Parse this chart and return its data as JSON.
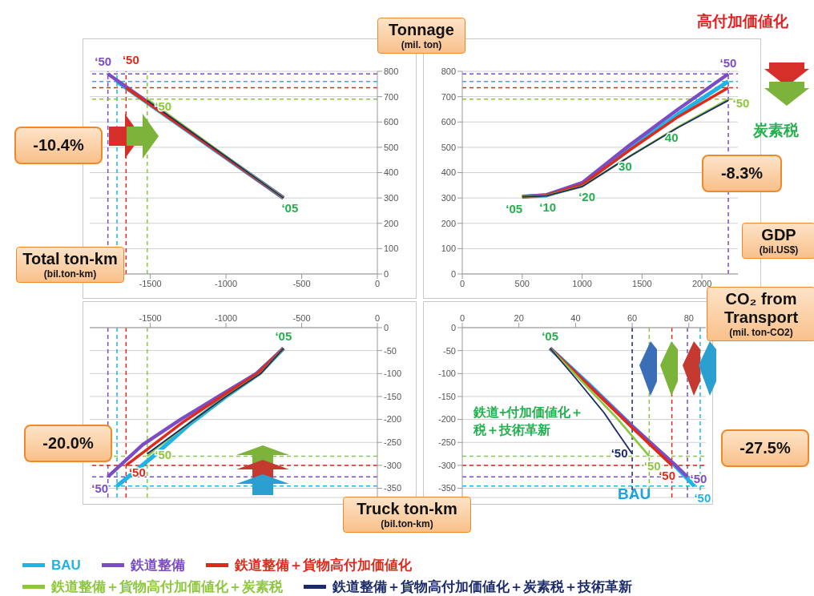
{
  "chart_data": [
    {
      "type": "line",
      "xlabel": "Total ton-km (bil.ton-km)",
      "ylabel": "Tonnage (mil. ton)",
      "xlim": [
        -1900,
        0
      ],
      "xticks": [
        -1500,
        -1000,
        -500,
        0
      ],
      "ylim": [
        0,
        800
      ],
      "yticks": [
        0,
        100,
        200,
        300,
        400,
        500,
        600,
        700,
        800
      ],
      "grid": "y",
      "line_style": "solid",
      "series": [
        {
          "color": "#1fb4e6",
          "x": [
            -620,
            -1170,
            -1720
          ],
          "values": [
            300,
            530,
            760
          ]
        },
        {
          "color": "#7b4cc4",
          "x": [
            -620,
            -1200,
            -1780
          ],
          "values": [
            300,
            545,
            790
          ]
        },
        {
          "color": "#dd2a1b",
          "x": [
            -620,
            -1140,
            -1660
          ],
          "values": [
            300,
            518,
            735
          ]
        },
        {
          "color": "#8dc63f",
          "x": [
            -620,
            -1070,
            -1520
          ],
          "values": [
            300,
            495,
            690
          ]
        },
        {
          "color": "#1b2a6b",
          "x": [
            -620,
            -1070,
            -1520
          ],
          "values": [
            300,
            493,
            685
          ]
        }
      ],
      "ref_lines": [
        {
          "axis": "x",
          "value": -1780,
          "color": "#7b4cc4",
          "line_style": "dashed"
        },
        {
          "axis": "x",
          "value": -1720,
          "color": "#1fb4e6",
          "line_style": "dashed"
        },
        {
          "axis": "x",
          "value": -1660,
          "color": "#dd2a1b",
          "line_style": "dashed"
        },
        {
          "axis": "x",
          "value": -1520,
          "color": "#8dc63f",
          "line_style": "dashed"
        },
        {
          "axis": "y",
          "value": 790,
          "color": "#7b4cc4",
          "line_style": "dashed"
        },
        {
          "axis": "y",
          "value": 760,
          "color": "#1fb4e6",
          "line_style": "dashed"
        },
        {
          "axis": "y",
          "value": 735,
          "color": "#dd2a1b",
          "line_style": "dashed"
        },
        {
          "axis": "y",
          "value": 690,
          "color": "#8dc63f",
          "line_style": "dashed"
        }
      ],
      "annotations": [
        "-10.4%",
        {
          "text": "‘50",
          "x": -1780,
          "y": 790
        },
        {
          "text": "‘50",
          "x": -1660,
          "y": 735
        },
        {
          "text": "‘50",
          "x": -1520,
          "y": 690
        },
        {
          "text": "‘05",
          "x": -620,
          "y": 300
        }
      ]
    },
    {
      "type": "line",
      "xlabel": "GDP (bil.US$)",
      "xlim": [
        0,
        2300
      ],
      "xticks": [
        0,
        500,
        1000,
        1500,
        2000
      ],
      "ylim": [
        0,
        800
      ],
      "yticks": [
        0,
        100,
        200,
        300,
        400,
        500,
        600,
        700,
        800
      ],
      "grid": "y",
      "line_style": "solid",
      "series": [
        {
          "color": "#1fb4e6",
          "x": [
            500,
            700,
            1000,
            1400,
            1800,
            2220
          ],
          "values": [
            305,
            310,
            355,
            495,
            630,
            760
          ]
        },
        {
          "color": "#7b4cc4",
          "x": [
            500,
            700,
            1000,
            1400,
            1800,
            2220
          ],
          "values": [
            305,
            312,
            360,
            510,
            650,
            790
          ]
        },
        {
          "color": "#dd2a1b",
          "x": [
            500,
            700,
            1000,
            1400,
            1800,
            2220
          ],
          "values": [
            305,
            310,
            352,
            490,
            620,
            735
          ]
        },
        {
          "color": "#8dc63f",
          "x": [
            500,
            700,
            1000,
            1400,
            1800,
            2220
          ],
          "values": [
            305,
            308,
            345,
            465,
            580,
            690
          ]
        },
        {
          "color": "#1b2a6b",
          "x": [
            500,
            700,
            1000,
            1400,
            1800,
            2220
          ],
          "values": [
            305,
            308,
            345,
            465,
            578,
            685
          ]
        }
      ],
      "ref_lines": [
        {
          "axis": "x",
          "value": 2220,
          "color": "#7b4cc4",
          "line_style": "dashed"
        },
        {
          "axis": "y",
          "value": 790,
          "color": "#7b4cc4",
          "line_style": "dashed"
        },
        {
          "axis": "y",
          "value": 760,
          "color": "#1fb4e6",
          "line_style": "dashed"
        },
        {
          "axis": "y",
          "value": 735,
          "color": "#dd2a1b",
          "line_style": "dashed"
        },
        {
          "axis": "y",
          "value": 690,
          "color": "#8dc63f",
          "line_style": "dashed"
        }
      ],
      "annotations": [
        "-8.3%",
        "高付加価値化",
        "炭素税",
        {
          "text": "‘05",
          "x": 500,
          "y": 305
        },
        {
          "text": "‘10",
          "x": 700,
          "y": 310
        },
        {
          "text": "‘20",
          "x": 1000,
          "y": 345
        },
        {
          "text": "30",
          "x": 1400,
          "y": 465
        },
        {
          "text": "40",
          "x": 1800,
          "y": 580
        },
        {
          "text": "‘50",
          "x": 2220,
          "y": 790
        },
        {
          "text": "‘50",
          "x": 2220,
          "y": 690
        }
      ]
    },
    {
      "type": "line",
      "ylabel": "Truck ton-km (bil.ton-km)",
      "xlim": [
        -1900,
        0
      ],
      "xticks": [
        -1500,
        -1000,
        -500,
        0
      ],
      "ylim": [
        -370,
        0
      ],
      "yticks": [
        -350,
        -300,
        -250,
        -200,
        -150,
        -100,
        -50,
        0
      ],
      "grid": "y",
      "line_style": "solid",
      "series": [
        {
          "color": "#1fb4e6",
          "x": [
            -620,
            -780,
            -1000,
            -1240,
            -1480,
            -1720
          ],
          "values": [
            -45,
            -100,
            -150,
            -210,
            -280,
            -345
          ]
        },
        {
          "color": "#7b4cc4",
          "x": [
            -620,
            -800,
            -1050,
            -1300,
            -1550,
            -1780
          ],
          "values": [
            -45,
            -100,
            -150,
            -200,
            -255,
            -325
          ]
        },
        {
          "color": "#dd2a1b",
          "x": [
            -620,
            -790,
            -1030,
            -1280,
            -1520,
            -1660
          ],
          "values": [
            -45,
            -100,
            -150,
            -205,
            -265,
            -300
          ]
        },
        {
          "color": "#8dc63f",
          "x": [
            -620,
            -770,
            -1000,
            -1230,
            -1450,
            -1520
          ],
          "values": [
            -45,
            -100,
            -150,
            -205,
            -260,
            -280
          ]
        },
        {
          "color": "#1b2a6b",
          "x": [
            -620,
            -770,
            -1000,
            -1230,
            -1450,
            -1520
          ],
          "values": [
            -45,
            -100,
            -150,
            -205,
            -258,
            -275
          ]
        }
      ],
      "ref_lines": [
        {
          "axis": "x",
          "value": -1780,
          "color": "#7b4cc4",
          "line_style": "dashed"
        },
        {
          "axis": "x",
          "value": -1720,
          "color": "#1fb4e6",
          "line_style": "dashed"
        },
        {
          "axis": "x",
          "value": -1660,
          "color": "#dd2a1b",
          "line_style": "dashed"
        },
        {
          "axis": "x",
          "value": -1520,
          "color": "#8dc63f",
          "line_style": "dashed"
        },
        {
          "axis": "y",
          "value": -280,
          "color": "#8dc63f",
          "line_style": "dashed"
        },
        {
          "axis": "y",
          "value": -300,
          "color": "#dd2a1b",
          "line_style": "dashed"
        },
        {
          "axis": "y",
          "value": -325,
          "color": "#7b4cc4",
          "line_style": "dashed"
        },
        {
          "axis": "y",
          "value": -345,
          "color": "#1fb4e6",
          "line_style": "dashed"
        }
      ],
      "annotations": [
        "-20.0%",
        {
          "text": "‘05",
          "x": -620,
          "y": -45
        },
        {
          "text": "‘50",
          "x": -1780,
          "y": -325
        },
        {
          "text": "‘50",
          "x": -1660,
          "y": -300
        },
        {
          "text": "‘50",
          "x": -1520,
          "y": -280
        }
      ]
    },
    {
      "type": "line",
      "xlabel": "CO₂ from Transport (mil. ton-CO2)",
      "xlim": [
        0,
        86
      ],
      "xticks": [
        0,
        20,
        40,
        60,
        80
      ],
      "ylim": [
        -370,
        0
      ],
      "yticks": [
        -350,
        -300,
        -250,
        -200,
        -150,
        -100,
        -50,
        0
      ],
      "grid": "y",
      "line_style": "solid",
      "legend": "bottom",
      "series": [
        {
          "name": "BAU",
          "color": "#1fb4e6",
          "x": [
            31,
            45,
            60,
            75,
            82
          ],
          "values": [
            -45,
            -125,
            -215,
            -300,
            -345
          ]
        },
        {
          "name": "鉄道整備",
          "color": "#7b4cc4",
          "x": [
            31,
            45,
            60,
            75,
            79.5
          ],
          "values": [
            -45,
            -127,
            -215,
            -298,
            -325
          ]
        },
        {
          "name": "鉄道整備＋貨物高付加価値化",
          "color": "#dd2a1b",
          "x": [
            31,
            45,
            60,
            74
          ],
          "values": [
            -45,
            -128,
            -218,
            -300
          ]
        },
        {
          "name": "鉄道整備＋貨物高付加価値化＋炭素税",
          "color": "#8dc63f",
          "x": [
            31,
            45,
            55,
            66
          ],
          "values": [
            -45,
            -135,
            -200,
            -280
          ]
        },
        {
          "name": "鉄道整備＋貨物高付加価値化＋炭素税＋技術革新",
          "color": "#1b2a6b",
          "x": [
            31,
            40,
            50,
            60
          ],
          "values": [
            -45,
            -110,
            -185,
            -275
          ]
        }
      ],
      "ref_lines": [
        {
          "axis": "x",
          "value": 60,
          "color": "#1b2a6b",
          "line_style": "dashed"
        },
        {
          "axis": "x",
          "value": 66,
          "color": "#8dc63f",
          "line_style": "dashed"
        },
        {
          "axis": "x",
          "value": 74,
          "color": "#dd2a1b",
          "line_style": "dashed"
        },
        {
          "axis": "x",
          "value": 79.5,
          "color": "#7b4cc4",
          "line_style": "dashed"
        },
        {
          "axis": "x",
          "value": 84,
          "color": "#1fb4e6",
          "line_style": "dashed"
        },
        {
          "axis": "y",
          "value": -280,
          "color": "#8dc63f",
          "line_style": "dashed"
        },
        {
          "axis": "y",
          "value": -300,
          "color": "#dd2a1b",
          "line_style": "dashed"
        },
        {
          "axis": "y",
          "value": -325,
          "color": "#7b4cc4",
          "line_style": "dashed"
        },
        {
          "axis": "y",
          "value": -345,
          "color": "#1fb4e6",
          "line_style": "dashed"
        }
      ],
      "annotations": [
        "-27.5%",
        "鉄道+付加価値化＋税＋技術革新",
        "BAU",
        {
          "text": "‘05",
          "x": 31,
          "y": -45
        },
        {
          "text": "‘50",
          "x": 60,
          "y": -275
        },
        {
          "text": "‘50",
          "x": 66,
          "y": -280
        },
        {
          "text": "‘50",
          "x": 74,
          "y": -300
        },
        {
          "text": "‘50",
          "x": 79.5,
          "y": -325
        },
        {
          "text": "‘50",
          "x": 82,
          "y": -345
        }
      ]
    }
  ]
}
